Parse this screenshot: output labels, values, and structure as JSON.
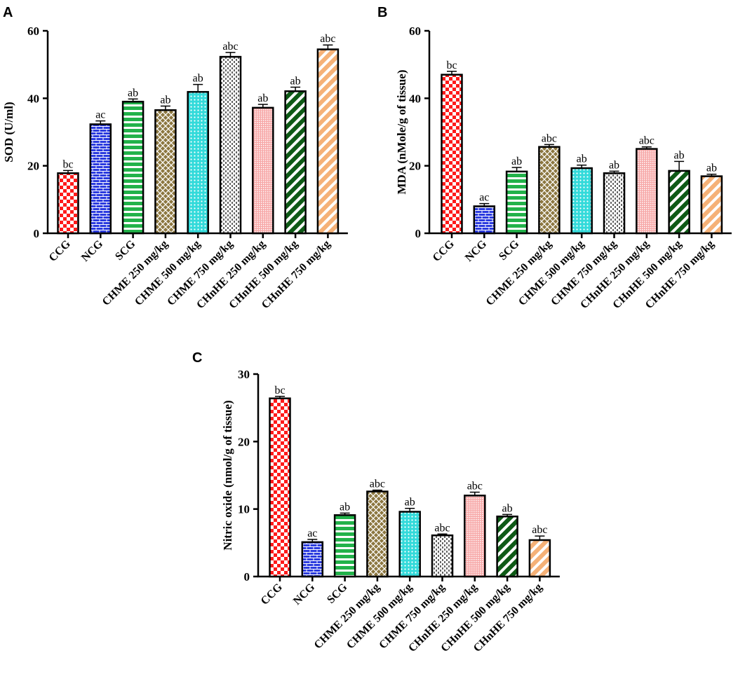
{
  "figure": {
    "panel_letters": [
      "A",
      "B",
      "C"
    ]
  },
  "chart_data": [
    {
      "panel": "A",
      "type": "bar",
      "title": "",
      "xlabel": "",
      "ylabel": "SOD (U/ml)",
      "ylim": [
        0,
        60
      ],
      "yticks": [
        0,
        20,
        40,
        60
      ],
      "categories": [
        "CCG",
        "NCG",
        "SCG",
        "CHME 250 mg/kg",
        "CHME 500 mg/kg",
        "CHME 750 mg/kg",
        "CHnHE 250 mg/kg",
        "CHnHE 500 mg/kg",
        "CHnHE 750 mg/kg"
      ],
      "values": [
        17.8,
        32.3,
        39.0,
        36.5,
        41.9,
        52.3,
        37.2,
        42.1,
        54.5
      ],
      "errors": [
        0.8,
        1.0,
        0.8,
        1.2,
        2.2,
        1.3,
        1.0,
        1.2,
        1.3
      ],
      "significance": [
        "bc",
        "ac",
        "ab",
        "ab",
        "ab",
        "abc",
        "ab",
        "ab",
        "abc"
      ]
    },
    {
      "panel": "B",
      "type": "bar",
      "title": "",
      "xlabel": "",
      "ylabel": "MDA (nMole/g of tissue)",
      "ylim": [
        0,
        60
      ],
      "yticks": [
        0,
        20,
        40,
        60
      ],
      "categories": [
        "CCG",
        "NCG",
        "SCG",
        "CHME 250 mg/kg",
        "CHME 500 mg/kg",
        "CHME 750 mg/kg",
        "CHnHE 250 mg/kg",
        "CHnHE 500 mg/kg",
        "CHnHE 750 mg/kg"
      ],
      "values": [
        47.0,
        8.0,
        18.3,
        25.6,
        19.3,
        17.8,
        25.0,
        18.5,
        16.9
      ],
      "errors": [
        1.0,
        0.8,
        1.2,
        0.7,
        0.9,
        0.6,
        0.6,
        2.8,
        0.6
      ],
      "significance": [
        "bc",
        "ac",
        "ab",
        "abc",
        "ab",
        "ab",
        "abc",
        "ab",
        "ab"
      ]
    },
    {
      "panel": "C",
      "type": "bar",
      "title": "",
      "xlabel": "",
      "ylabel": "Nitric oxide (nmol/g of tissue)",
      "ylim": [
        0,
        30
      ],
      "yticks": [
        0,
        10,
        20,
        30
      ],
      "categories": [
        "CCG",
        "NCG",
        "SCG",
        "CHME 250 mg/kg",
        "CHME 500 mg/kg",
        "CHME 750 mg/kg",
        "CHnHE 250 mg/kg",
        "CHnHE 500 mg/kg",
        "CHnHE 750 mg/kg"
      ],
      "values": [
        26.4,
        5.1,
        9.1,
        12.6,
        9.6,
        6.1,
        12.0,
        8.9,
        5.4
      ],
      "errors": [
        0.3,
        0.4,
        0.3,
        0.2,
        0.5,
        0.2,
        0.5,
        0.3,
        0.6
      ],
      "significance": [
        "bc",
        "ac",
        "ab",
        "abc",
        "ab",
        "abc",
        "abc",
        "ab",
        "abc"
      ]
    }
  ],
  "bar_styles": [
    {
      "fill": "#ff1a1a",
      "pattern": "checker"
    },
    {
      "fill": "#2a3adf",
      "pattern": "brick"
    },
    {
      "fill": "#22b24a",
      "pattern": "hstripes"
    },
    {
      "fill": "#8c7740",
      "pattern": "diamonds"
    },
    {
      "fill": "#33dada",
      "pattern": "dots"
    },
    {
      "fill": "#ffffff",
      "pattern": "dashes"
    },
    {
      "fill": "#f7a8a8",
      "pattern": "fine"
    },
    {
      "fill": "#0e5a16",
      "pattern": "diag"
    },
    {
      "fill": "#f5b177",
      "pattern": "diag"
    }
  ]
}
